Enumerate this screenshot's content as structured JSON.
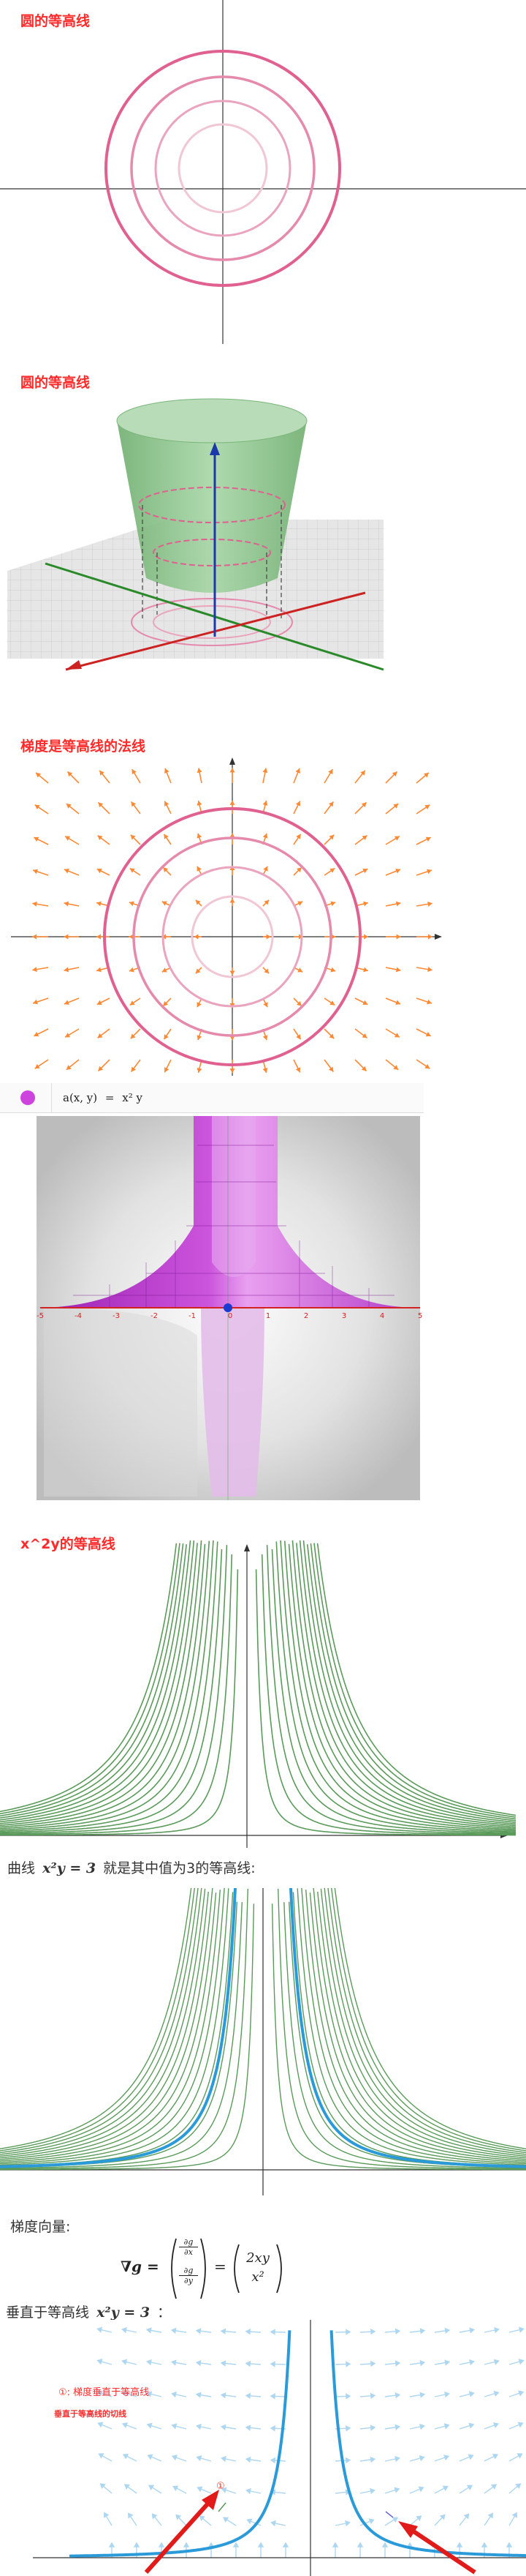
{
  "sections": {
    "s1_title": "圆的等高线",
    "s2_title": "圆的等高线",
    "s3_title": "梯度是等高线的法线",
    "s4_formula_lhs": "a(x, y)",
    "s4_formula_eq": "=",
    "s4_formula_rhs": "x² y",
    "s5_title": "x^2y的等高线",
    "s6_text_prefix": "曲线",
    "s6_text_math": "x²y = 3",
    "s6_text_suffix": "就是其中值为3的等高线:",
    "s7_text": "梯度向量:",
    "s7_lhs": "∇g =",
    "s7_d1": "∂g",
    "s7_dx": "∂x",
    "s7_d2": "∂g",
    "s7_dy": "∂y",
    "s7_eq": "=",
    "s7_r1": "2xy",
    "s7_r2": "x²",
    "s8_text_prefix": "垂直于等高线",
    "s8_text_math": "x²y = 3",
    "s8_text_suffix": "：",
    "ann1": "①: 梯度垂直于等高线",
    "ann2": "垂直于等高线的切线",
    "ann_num": "①"
  },
  "plot3d_ticks": [
    "-5",
    "-4",
    "-3",
    "-2",
    "-1",
    "0",
    "1",
    "2",
    "3",
    "4",
    "5"
  ],
  "colors": {
    "title_red": "#ff2a2a",
    "circle_pink": "#e06090",
    "contour_green": "#5a9a5a",
    "contour_blue": "#2a9ad8",
    "arrow_orange": "#ff8833",
    "vec_blue": "#8cc4ea",
    "surface_purple": "#bb33cc",
    "paraboloid_green": "#8cc68c"
  }
}
